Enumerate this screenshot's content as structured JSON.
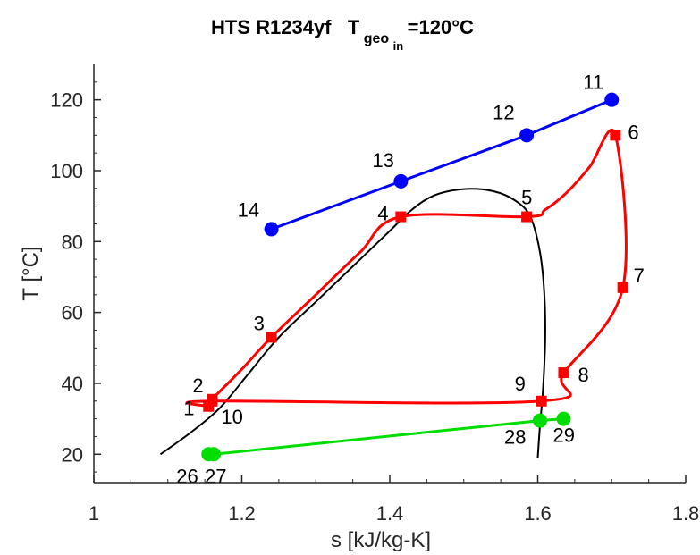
{
  "chart_data": {
    "type": "scatter",
    "title": {
      "main": "HTS R1234yf   T",
      "sub": "geo",
      "subsub": "in",
      "value": "=120°C"
    },
    "xlabel": "s [kJ/kg-K]",
    "ylabel": "T [°C]",
    "xlim": [
      1.0,
      1.8
    ],
    "ylim": [
      12,
      130
    ],
    "xticks": [
      {
        "value": 1.0,
        "label": "1"
      },
      {
        "value": 1.2,
        "label": "1.2"
      },
      {
        "value": 1.4,
        "label": "1.4"
      },
      {
        "value": 1.6,
        "label": "1.6"
      },
      {
        "value": 1.8,
        "label": "1.8"
      }
    ],
    "yticks": [
      {
        "value": 20,
        "label": "20"
      },
      {
        "value": 40,
        "label": "40"
      },
      {
        "value": 60,
        "label": "60"
      },
      {
        "value": 80,
        "label": "80"
      },
      {
        "value": 100,
        "label": "100"
      },
      {
        "value": 120,
        "label": "120"
      }
    ],
    "grid": false,
    "series": [
      {
        "role": "saturation-dome",
        "color": "#000000",
        "points": [
          [
            1.09,
            20
          ],
          [
            1.13,
            26
          ],
          [
            1.17,
            33
          ],
          [
            1.21,
            43
          ],
          [
            1.25,
            53
          ],
          [
            1.3,
            63
          ],
          [
            1.35,
            73
          ],
          [
            1.4,
            83
          ],
          [
            1.43,
            89
          ],
          [
            1.46,
            93
          ],
          [
            1.5,
            94.8
          ],
          [
            1.54,
            94.2
          ],
          [
            1.57,
            91.5
          ],
          [
            1.59,
            87
          ],
          [
            1.603,
            77
          ],
          [
            1.609,
            65
          ],
          [
            1.61,
            52
          ],
          [
            1.607,
            38
          ],
          [
            1.603,
            28
          ],
          [
            1.6,
            19
          ]
        ]
      },
      {
        "role": "heat-source",
        "color": "#0000ff",
        "marker": "circle",
        "points": [
          [
            1.7,
            120
          ],
          [
            1.585,
            110
          ],
          [
            1.415,
            97
          ],
          [
            1.24,
            83.5
          ]
        ],
        "labels": [
          "11",
          "12",
          "13",
          "14"
        ]
      },
      {
        "role": "cycle",
        "color": "#ff0000",
        "marker": "square",
        "points": [
          [
            1.155,
            33.5
          ],
          [
            1.16,
            35.5
          ],
          [
            1.24,
            53
          ],
          [
            1.415,
            87
          ],
          [
            1.585,
            87
          ],
          [
            1.705,
            110
          ],
          [
            1.715,
            67
          ],
          [
            1.635,
            43
          ],
          [
            1.605,
            35
          ],
          [
            1.16,
            35
          ]
        ],
        "labels": [
          "1",
          "2",
          "3",
          "4",
          "5",
          "6",
          "7",
          "8",
          "9",
          "10"
        ],
        "curve": [
          [
            1.155,
            33.5
          ],
          [
            1.16,
            35.5
          ],
          [
            1.2,
            44
          ],
          [
            1.24,
            53
          ],
          [
            1.3,
            65
          ],
          [
            1.36,
            77
          ],
          [
            1.415,
            87
          ],
          [
            1.585,
            87
          ],
          [
            1.61,
            89
          ],
          [
            1.64,
            94
          ],
          [
            1.67,
            101
          ],
          [
            1.705,
            110
          ],
          [
            1.715,
            67
          ],
          [
            1.635,
            43
          ],
          [
            1.605,
            35
          ],
          [
            1.16,
            35
          ],
          [
            1.155,
            33.5
          ]
        ]
      },
      {
        "role": "heat-sink",
        "color": "#00dd00",
        "marker": "circle",
        "points": [
          [
            1.155,
            20
          ],
          [
            1.162,
            20
          ],
          [
            1.603,
            29.5
          ],
          [
            1.635,
            30
          ]
        ],
        "labels": [
          "26",
          "27",
          "28",
          "29"
        ]
      }
    ]
  }
}
